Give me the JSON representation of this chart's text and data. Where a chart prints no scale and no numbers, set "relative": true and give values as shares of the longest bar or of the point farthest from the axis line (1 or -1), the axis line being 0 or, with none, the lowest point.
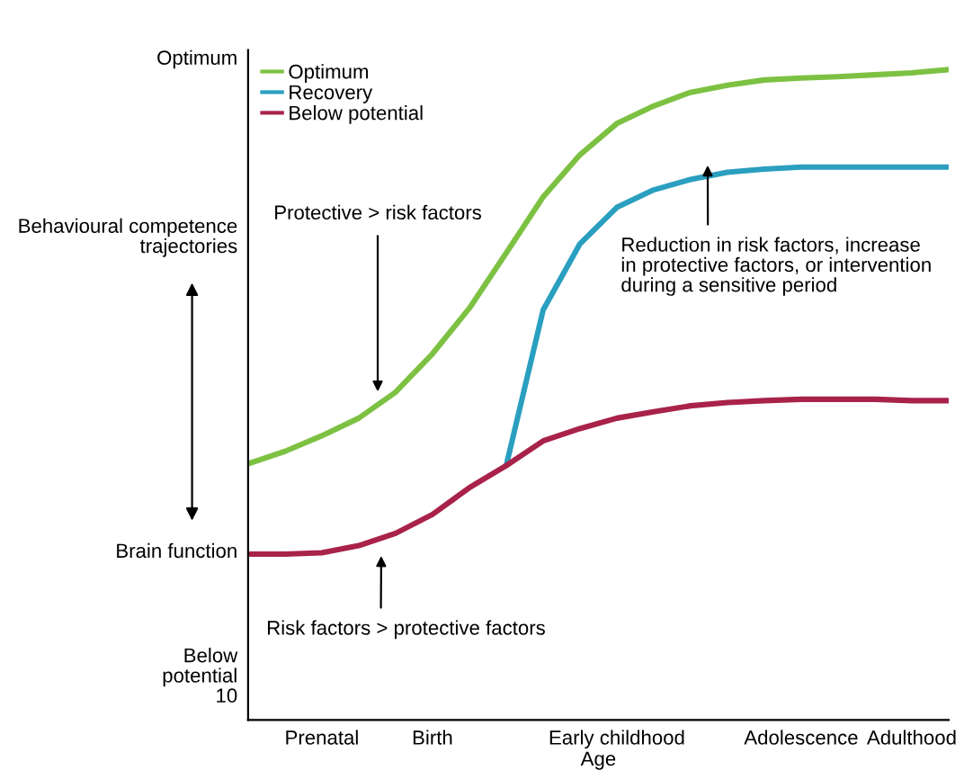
{
  "chart_data": {
    "type": "line",
    "relative": true,
    "xlabel": "Age",
    "categories": [
      null,
      null,
      "Prenatal",
      null,
      null,
      "Birth",
      null,
      null,
      null,
      null,
      "Early childhood",
      null,
      null,
      null,
      null,
      "Adolescence",
      null,
      null,
      "Adulthood",
      null
    ],
    "series": [
      {
        "name": "Optimum",
        "color": "#7dc142",
        "values": [
          0.394,
          0.413,
          0.437,
          0.464,
          0.504,
          0.563,
          0.633,
          0.718,
          0.804,
          0.869,
          0.917,
          0.944,
          0.965,
          0.976,
          0.984,
          0.987,
          0.989,
          0.992,
          0.995,
          1
        ]
      },
      {
        "name": "Recovery",
        "color": "#2a9fc0",
        "values": [
          null,
          null,
          null,
          null,
          null,
          null,
          null,
          0.391,
          0.63,
          0.732,
          0.788,
          0.815,
          0.831,
          0.842,
          0.847,
          0.85,
          0.85,
          0.85,
          0.85,
          0.85
        ]
      },
      {
        "name": "Below potential",
        "color": "#a8224a",
        "values": [
          0.255,
          0.255,
          0.257,
          0.268,
          0.287,
          0.316,
          0.357,
          0.391,
          0.429,
          0.448,
          0.464,
          0.474,
          0.483,
          0.488,
          0.491,
          0.493,
          0.493,
          0.493,
          0.491,
          0.491
        ]
      }
    ],
    "legend": "top left",
    "grid": false,
    "marker": "none",
    "line_style": "solid",
    "annotations": [
      "Optimum",
      "Behavioural competence\ntrajectories",
      "Brain function",
      "Below\npotential\n10",
      "Protective > risk factors",
      "Risk factors > protective factors",
      "Reduction in risk factors, increase\nin protective factors, or intervention\nduring a sensitive period"
    ]
  }
}
